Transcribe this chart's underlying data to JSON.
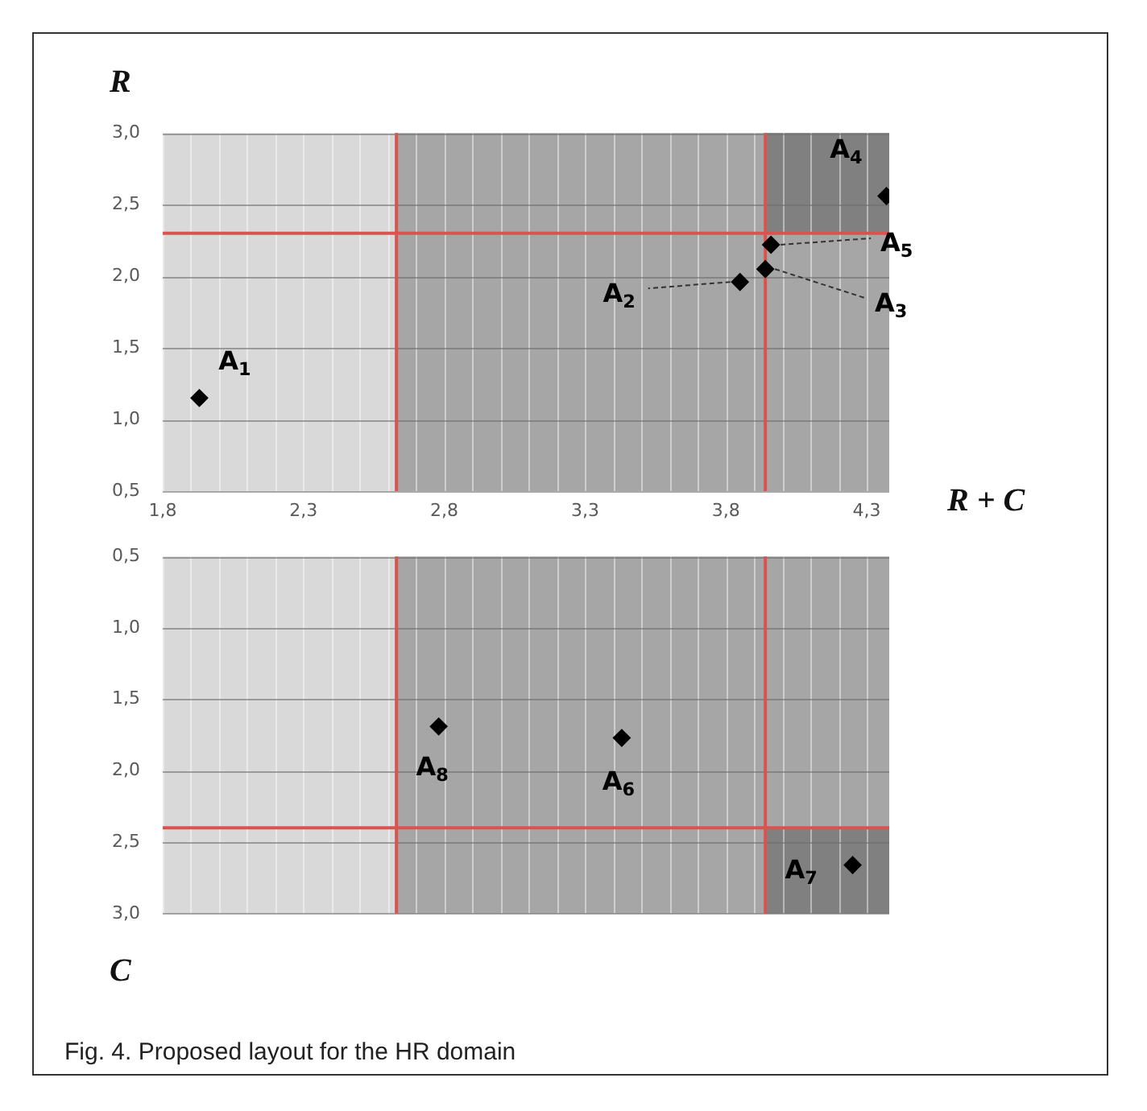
{
  "chart_data": [
    {
      "type": "scatter",
      "ylabel": "R",
      "xlabel": "R + C",
      "xlim": [
        1.8,
        4.38
      ],
      "xticks": [
        {
          "value": 1.8,
          "label": "1,8"
        },
        {
          "value": 1.9,
          "label": null
        },
        {
          "value": 2.0,
          "label": null
        },
        {
          "value": 2.1,
          "label": null
        },
        {
          "value": 2.2,
          "label": null
        },
        {
          "value": 2.3,
          "label": "2,3"
        },
        {
          "value": 2.4,
          "label": null
        },
        {
          "value": 2.5,
          "label": null
        },
        {
          "value": 2.6,
          "label": null
        },
        {
          "value": 2.7,
          "label": null
        },
        {
          "value": 2.8,
          "label": "2,8"
        },
        {
          "value": 2.9,
          "label": null
        },
        {
          "value": 3.0,
          "label": null
        },
        {
          "value": 3.1,
          "label": null
        },
        {
          "value": 3.2,
          "label": null
        },
        {
          "value": 3.3,
          "label": "3,3"
        },
        {
          "value": 3.4,
          "label": null
        },
        {
          "value": 3.5,
          "label": null
        },
        {
          "value": 3.6,
          "label": null
        },
        {
          "value": 3.7,
          "label": null
        },
        {
          "value": 3.8,
          "label": "3,8"
        },
        {
          "value": 3.9,
          "label": null
        },
        {
          "value": 4.0,
          "label": null
        },
        {
          "value": 4.1,
          "label": null
        },
        {
          "value": 4.2,
          "label": null
        },
        {
          "value": 4.3,
          "label": "4,3"
        }
      ],
      "ylim": [
        0.5,
        3.0
      ],
      "yticks": [
        {
          "value": 0.5,
          "label": "0,5"
        },
        {
          "value": 1.0,
          "label": "1,0"
        },
        {
          "value": 1.5,
          "label": "1,5"
        },
        {
          "value": 2.0,
          "label": "2,0"
        },
        {
          "value": 2.5,
          "label": "2,5"
        },
        {
          "value": 3.0,
          "label": "3,0"
        }
      ],
      "grid": true,
      "marker": "diamond",
      "legend": false,
      "series": [
        {
          "color": "#000000",
          "x": [
            1.93,
            3.85,
            3.94,
            4.37,
            3.96
          ],
          "values": [
            1.15,
            1.96,
            2.05,
            2.56,
            2.22
          ]
        }
      ],
      "bands": [
        {
          "axis": "x",
          "from": 1.8,
          "to": 2.63,
          "color": "#d9d9d9"
        },
        {
          "axis": "x",
          "from": 2.63,
          "to": 4.38,
          "color": "#a6a6a6"
        },
        {
          "axis": "y",
          "from": 2.3,
          "to": 3.0,
          "color": "#808080"
        }
      ],
      "ref_lines": [
        {
          "axis": "x",
          "value": 2.63,
          "color": "#d9534f"
        },
        {
          "axis": "x",
          "value": 3.94,
          "color": "#d9534f"
        },
        {
          "axis": "y",
          "value": 2.3,
          "color": "#d9534f"
        }
      ],
      "annotations": [
        {
          "text": "A$_{1}$",
          "x": 1.93,
          "y": 1.15
        },
        {
          "text": "A$_{2}$",
          "x": 3.85,
          "y": 1.96
        },
        {
          "text": "A$_{3}$",
          "x": 3.94,
          "y": 2.05
        },
        {
          "text": "A$_{4}$",
          "x": 4.37,
          "y": 2.56
        },
        {
          "text": "A$_{5}$",
          "x": 3.96,
          "y": 2.22
        }
      ]
    },
    {
      "type": "scatter",
      "ylabel": "C",
      "tick_labels": "y",
      "xlim": [
        1.8,
        4.38
      ],
      "xticks": [
        {
          "value": 1.8,
          "label": null
        },
        {
          "value": 1.9,
          "label": null
        },
        {
          "value": 2.0,
          "label": null
        },
        {
          "value": 2.1,
          "label": null
        },
        {
          "value": 2.2,
          "label": null
        },
        {
          "value": 2.3,
          "label": null
        },
        {
          "value": 2.4,
          "label": null
        },
        {
          "value": 2.5,
          "label": null
        },
        {
          "value": 2.6,
          "label": null
        },
        {
          "value": 2.7,
          "label": null
        },
        {
          "value": 2.8,
          "label": null
        },
        {
          "value": 2.9,
          "label": null
        },
        {
          "value": 3.0,
          "label": null
        },
        {
          "value": 3.1,
          "label": null
        },
        {
          "value": 3.2,
          "label": null
        },
        {
          "value": 3.3,
          "label": null
        },
        {
          "value": 3.4,
          "label": null
        },
        {
          "value": 3.5,
          "label": null
        },
        {
          "value": 3.6,
          "label": null
        },
        {
          "value": 3.7,
          "label": null
        },
        {
          "value": 3.8,
          "label": null
        },
        {
          "value": 3.9,
          "label": null
        },
        {
          "value": 4.0,
          "label": null
        },
        {
          "value": 4.1,
          "label": null
        },
        {
          "value": 4.2,
          "label": null
        },
        {
          "value": 4.3,
          "label": null
        }
      ],
      "ylim": [
        3.0,
        0.5
      ],
      "yticks": [
        {
          "value": 0.5,
          "label": "0,5"
        },
        {
          "value": 1.0,
          "label": "1,0"
        },
        {
          "value": 1.5,
          "label": "1,5"
        },
        {
          "value": 2.0,
          "label": "2,0"
        },
        {
          "value": 2.5,
          "label": "2,5"
        },
        {
          "value": 3.0,
          "label": "3,0"
        }
      ],
      "grid": true,
      "marker": "diamond",
      "legend": false,
      "series": [
        {
          "color": "#000000",
          "x": [
            3.43,
            4.25,
            2.78
          ],
          "values": [
            1.77,
            2.66,
            1.69
          ]
        }
      ],
      "bands": [
        {
          "axis": "x",
          "from": 1.8,
          "to": 2.63,
          "color": "#d9d9d9"
        },
        {
          "axis": "x",
          "from": 2.63,
          "to": 4.38,
          "color": "#a6a6a6"
        },
        {
          "axis": "y",
          "from": 2.4,
          "to": 3.0,
          "color": "#808080"
        }
      ],
      "ref_lines": [
        {
          "axis": "x",
          "value": 2.63,
          "color": "#d9534f"
        },
        {
          "axis": "x",
          "value": 3.94,
          "color": "#d9534f"
        },
        {
          "axis": "y",
          "value": 2.4,
          "color": "#d9534f"
        }
      ],
      "annotations": [
        {
          "text": "A$_{6}$",
          "x": 3.43,
          "y": 1.77
        },
        {
          "text": "A$_{7}$",
          "x": 4.25,
          "y": 2.66
        },
        {
          "text": "A$_{8}$",
          "x": 2.78,
          "y": 1.69
        },
        "Fig. 4. Proposed layout for the HR domain"
      ]
    }
  ]
}
